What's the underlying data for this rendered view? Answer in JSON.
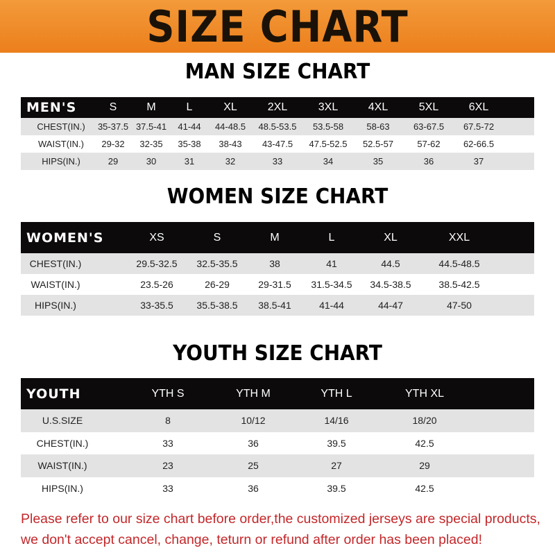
{
  "banner": {
    "title": "SIZE CHART",
    "color": "#ef8a26"
  },
  "men": {
    "title": "MAN SIZE CHART",
    "header": [
      "MEN'S",
      "S",
      "M",
      "L",
      "XL",
      "2XL",
      "3XL",
      "4XL",
      "5XL",
      "6XL"
    ],
    "rows": [
      [
        "CHEST(IN.)",
        "35-37.5",
        "37.5-41",
        "41-44",
        "44-48.5",
        "48.5-53.5",
        "53.5-58",
        "58-63",
        "63-67.5",
        "67.5-72"
      ],
      [
        "WAIST(IN.)",
        "29-32",
        "32-35",
        "35-38",
        "38-43",
        "43-47.5",
        "47.5-52.5",
        "52.5-57",
        "57-62",
        "62-66.5"
      ],
      [
        "HIPS(IN.)",
        "29",
        "30",
        "31",
        "32",
        "33",
        "34",
        "35",
        "36",
        "37"
      ]
    ]
  },
  "women": {
    "title": "WOMEN SIZE CHART",
    "header": [
      "WOMEN'S",
      "XS",
      "S",
      "M",
      "L",
      "XL",
      "XXL"
    ],
    "rows": [
      [
        "CHEST(IN.)",
        "29.5-32.5",
        "32.5-35.5",
        "38",
        "41",
        "44.5",
        "44.5-48.5"
      ],
      [
        "WAIST(IN.)",
        "23.5-26",
        "26-29",
        "29-31.5",
        "31.5-34.5",
        "34.5-38.5",
        "38.5-42.5"
      ],
      [
        "HIPS(IN.)",
        "33-35.5",
        "35.5-38.5",
        "38.5-41",
        "41-44",
        "44-47",
        "47-50"
      ]
    ]
  },
  "youth": {
    "title": "YOUTH SIZE CHART",
    "header": [
      "YOUTH",
      "YTH S",
      "YTH M",
      "YTH L",
      "YTH XL"
    ],
    "rows": [
      [
        "U.S.SIZE",
        "8",
        "10/12",
        "14/16",
        "18/20"
      ],
      [
        "CHEST(IN.)",
        "33",
        "36",
        "39.5",
        "42.5"
      ],
      [
        "WAIST(IN.)",
        "23",
        "25",
        "27",
        "29"
      ],
      [
        "HIPS(IN.)",
        "33",
        "36",
        "39.5",
        "42.5"
      ]
    ]
  },
  "notice": {
    "line1": "Please refer to our size chart before order,the customized jerseys are special products,",
    "line2": "we don't accept cancel, change, teturn or refund after order has been placed!",
    "color": "#c3272a"
  }
}
